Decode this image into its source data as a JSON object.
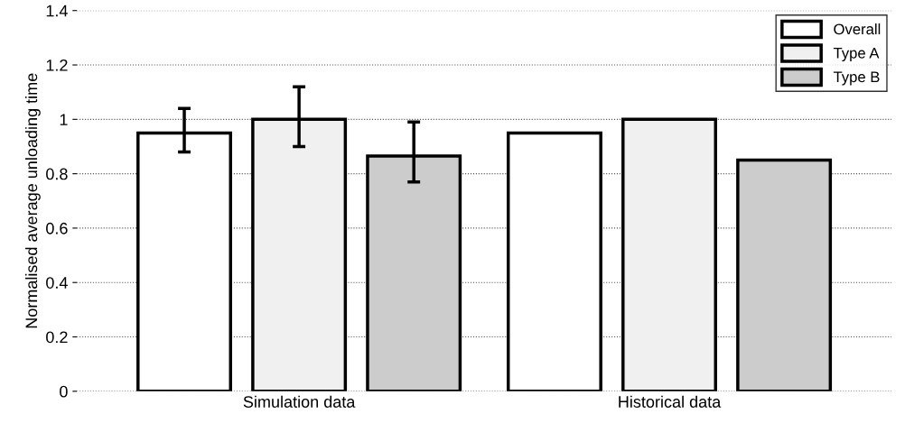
{
  "chart_data": {
    "type": "bar",
    "ylabel": "Normalised average unloading time",
    "categories": [
      "Simulation data",
      "Historical data"
    ],
    "series": [
      {
        "name": "Overall",
        "color": "#ffffff",
        "values": [
          0.95,
          0.95
        ],
        "errors": [
          [
            0.88,
            1.04
          ],
          null
        ]
      },
      {
        "name": "Type A",
        "color": "#f0f0f0",
        "values": [
          1.0,
          1.0
        ],
        "errors": [
          [
            0.9,
            1.12
          ],
          null
        ]
      },
      {
        "name": "Type B",
        "color": "#cccccc",
        "values": [
          0.865,
          0.85
        ],
        "errors": [
          [
            0.77,
            0.99
          ],
          null
        ]
      }
    ],
    "ylim": [
      0,
      1.4
    ],
    "yticks": [
      0,
      0.2,
      0.4,
      0.6,
      0.8,
      1,
      1.2,
      1.4
    ],
    "grid": "y",
    "legend": "top right"
  }
}
